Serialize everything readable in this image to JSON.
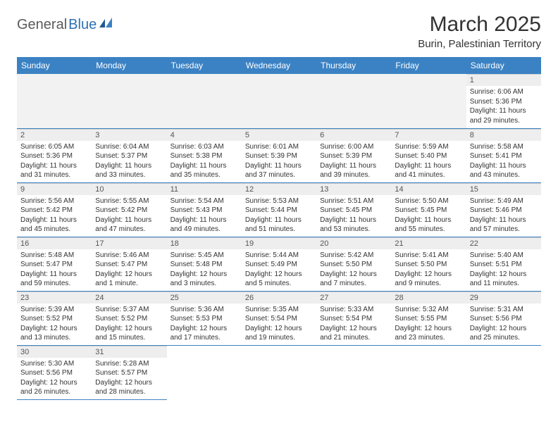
{
  "logo": {
    "text1": "General",
    "text2": "Blue"
  },
  "title": "March 2025",
  "location": "Burin, Palestinian Territory",
  "weekdays": [
    "Sunday",
    "Monday",
    "Tuesday",
    "Wednesday",
    "Thursday",
    "Friday",
    "Saturday"
  ],
  "colors": {
    "header_bg": "#3b82c4",
    "header_fg": "#ffffff",
    "daynum_bg": "#eeeeee",
    "empty_bg": "#f2f2f2",
    "border": "#3b82c4",
    "text": "#333333",
    "logo_dark": "#5a5a5a",
    "logo_blue": "#2d6fb3"
  },
  "weeks": [
    [
      null,
      null,
      null,
      null,
      null,
      null,
      {
        "n": "1",
        "sunrise": "Sunrise: 6:06 AM",
        "sunset": "Sunset: 5:36 PM",
        "daylight": "Daylight: 11 hours and 29 minutes."
      }
    ],
    [
      {
        "n": "2",
        "sunrise": "Sunrise: 6:05 AM",
        "sunset": "Sunset: 5:36 PM",
        "daylight": "Daylight: 11 hours and 31 minutes."
      },
      {
        "n": "3",
        "sunrise": "Sunrise: 6:04 AM",
        "sunset": "Sunset: 5:37 PM",
        "daylight": "Daylight: 11 hours and 33 minutes."
      },
      {
        "n": "4",
        "sunrise": "Sunrise: 6:03 AM",
        "sunset": "Sunset: 5:38 PM",
        "daylight": "Daylight: 11 hours and 35 minutes."
      },
      {
        "n": "5",
        "sunrise": "Sunrise: 6:01 AM",
        "sunset": "Sunset: 5:39 PM",
        "daylight": "Daylight: 11 hours and 37 minutes."
      },
      {
        "n": "6",
        "sunrise": "Sunrise: 6:00 AM",
        "sunset": "Sunset: 5:39 PM",
        "daylight": "Daylight: 11 hours and 39 minutes."
      },
      {
        "n": "7",
        "sunrise": "Sunrise: 5:59 AM",
        "sunset": "Sunset: 5:40 PM",
        "daylight": "Daylight: 11 hours and 41 minutes."
      },
      {
        "n": "8",
        "sunrise": "Sunrise: 5:58 AM",
        "sunset": "Sunset: 5:41 PM",
        "daylight": "Daylight: 11 hours and 43 minutes."
      }
    ],
    [
      {
        "n": "9",
        "sunrise": "Sunrise: 5:56 AM",
        "sunset": "Sunset: 5:42 PM",
        "daylight": "Daylight: 11 hours and 45 minutes."
      },
      {
        "n": "10",
        "sunrise": "Sunrise: 5:55 AM",
        "sunset": "Sunset: 5:42 PM",
        "daylight": "Daylight: 11 hours and 47 minutes."
      },
      {
        "n": "11",
        "sunrise": "Sunrise: 5:54 AM",
        "sunset": "Sunset: 5:43 PM",
        "daylight": "Daylight: 11 hours and 49 minutes."
      },
      {
        "n": "12",
        "sunrise": "Sunrise: 5:53 AM",
        "sunset": "Sunset: 5:44 PM",
        "daylight": "Daylight: 11 hours and 51 minutes."
      },
      {
        "n": "13",
        "sunrise": "Sunrise: 5:51 AM",
        "sunset": "Sunset: 5:45 PM",
        "daylight": "Daylight: 11 hours and 53 minutes."
      },
      {
        "n": "14",
        "sunrise": "Sunrise: 5:50 AM",
        "sunset": "Sunset: 5:45 PM",
        "daylight": "Daylight: 11 hours and 55 minutes."
      },
      {
        "n": "15",
        "sunrise": "Sunrise: 5:49 AM",
        "sunset": "Sunset: 5:46 PM",
        "daylight": "Daylight: 11 hours and 57 minutes."
      }
    ],
    [
      {
        "n": "16",
        "sunrise": "Sunrise: 5:48 AM",
        "sunset": "Sunset: 5:47 PM",
        "daylight": "Daylight: 11 hours and 59 minutes."
      },
      {
        "n": "17",
        "sunrise": "Sunrise: 5:46 AM",
        "sunset": "Sunset: 5:47 PM",
        "daylight": "Daylight: 12 hours and 1 minute."
      },
      {
        "n": "18",
        "sunrise": "Sunrise: 5:45 AM",
        "sunset": "Sunset: 5:48 PM",
        "daylight": "Daylight: 12 hours and 3 minutes."
      },
      {
        "n": "19",
        "sunrise": "Sunrise: 5:44 AM",
        "sunset": "Sunset: 5:49 PM",
        "daylight": "Daylight: 12 hours and 5 minutes."
      },
      {
        "n": "20",
        "sunrise": "Sunrise: 5:42 AM",
        "sunset": "Sunset: 5:50 PM",
        "daylight": "Daylight: 12 hours and 7 minutes."
      },
      {
        "n": "21",
        "sunrise": "Sunrise: 5:41 AM",
        "sunset": "Sunset: 5:50 PM",
        "daylight": "Daylight: 12 hours and 9 minutes."
      },
      {
        "n": "22",
        "sunrise": "Sunrise: 5:40 AM",
        "sunset": "Sunset: 5:51 PM",
        "daylight": "Daylight: 12 hours and 11 minutes."
      }
    ],
    [
      {
        "n": "23",
        "sunrise": "Sunrise: 5:39 AM",
        "sunset": "Sunset: 5:52 PM",
        "daylight": "Daylight: 12 hours and 13 minutes."
      },
      {
        "n": "24",
        "sunrise": "Sunrise: 5:37 AM",
        "sunset": "Sunset: 5:52 PM",
        "daylight": "Daylight: 12 hours and 15 minutes."
      },
      {
        "n": "25",
        "sunrise": "Sunrise: 5:36 AM",
        "sunset": "Sunset: 5:53 PM",
        "daylight": "Daylight: 12 hours and 17 minutes."
      },
      {
        "n": "26",
        "sunrise": "Sunrise: 5:35 AM",
        "sunset": "Sunset: 5:54 PM",
        "daylight": "Daylight: 12 hours and 19 minutes."
      },
      {
        "n": "27",
        "sunrise": "Sunrise: 5:33 AM",
        "sunset": "Sunset: 5:54 PM",
        "daylight": "Daylight: 12 hours and 21 minutes."
      },
      {
        "n": "28",
        "sunrise": "Sunrise: 5:32 AM",
        "sunset": "Sunset: 5:55 PM",
        "daylight": "Daylight: 12 hours and 23 minutes."
      },
      {
        "n": "29",
        "sunrise": "Sunrise: 5:31 AM",
        "sunset": "Sunset: 5:56 PM",
        "daylight": "Daylight: 12 hours and 25 minutes."
      }
    ],
    [
      {
        "n": "30",
        "sunrise": "Sunrise: 5:30 AM",
        "sunset": "Sunset: 5:56 PM",
        "daylight": "Daylight: 12 hours and 26 minutes."
      },
      {
        "n": "31",
        "sunrise": "Sunrise: 5:28 AM",
        "sunset": "Sunset: 5:57 PM",
        "daylight": "Daylight: 12 hours and 28 minutes."
      },
      null,
      null,
      null,
      null,
      null
    ]
  ]
}
